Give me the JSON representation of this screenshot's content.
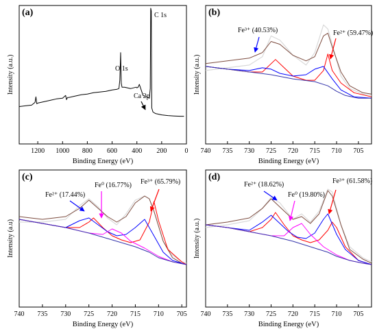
{
  "chart_data": [
    {
      "panel_label": "(a)",
      "type": "line",
      "xlabel": "Binding Energy (eV)",
      "ylabel": "Intensity (a.u.)",
      "xlim": [
        1350,
        0
      ],
      "ylim": [
        0,
        100
      ],
      "x_ticks": [
        1200,
        1000,
        800,
        600,
        400,
        200,
        0
      ],
      "grid": false,
      "series": [
        {
          "x": [
            1350,
            1300,
            1250,
            1222,
            1215,
            1208,
            1200,
            1150,
            1100,
            1050,
            1000,
            975,
            968,
            960,
            950,
            900,
            850,
            800,
            750,
            700,
            650,
            600,
            560,
            545,
            538,
            531,
            526,
            520,
            500,
            450,
            405,
            400,
            390,
            380,
            350,
            320,
            300,
            292,
            288,
            284,
            280,
            270,
            250,
            200,
            150,
            100,
            50,
            20
          ],
          "values": [
            27,
            27.5,
            28,
            30,
            34,
            29,
            29.5,
            30.5,
            31.5,
            32.5,
            33,
            35,
            32,
            33.5,
            33.5,
            34.5,
            35.5,
            36,
            37,
            37.5,
            38,
            39,
            39.5,
            40,
            46,
            66,
            44,
            41,
            41,
            40,
            41,
            40.5,
            41,
            43,
            35,
            34,
            33,
            40,
            98,
            96,
            26,
            23,
            22,
            21,
            20.5,
            20.2,
            20,
            20
          ],
          "color": "#000000"
        }
      ],
      "annotations": [
        "O 1s",
        "C 1s",
        "Ca 2p"
      ]
    },
    {
      "panel_label": "(b)",
      "type": "line",
      "xlabel": "Binding Energy (eV)",
      "ylabel": "Intensity (a.u.)",
      "xlim": [
        740,
        702
      ],
      "ylim": [
        0,
        100
      ],
      "x_ticks": [
        740,
        735,
        730,
        725,
        720,
        715,
        710,
        705
      ],
      "grid": false,
      "series": [
        {
          "x": [
            740,
            735,
            730,
            727,
            725,
            723,
            720,
            717,
            715,
            713,
            712,
            711,
            709,
            707,
            704,
            702
          ],
          "values": [
            53,
            55,
            57,
            63,
            78,
            75,
            64,
            57,
            66,
            86,
            83,
            72,
            49,
            40,
            36,
            35
          ],
          "color": "#d9d9d9"
        },
        {
          "x": [
            740,
            735,
            730,
            727,
            725,
            723,
            720,
            717,
            715,
            713,
            712,
            711,
            709,
            707,
            704,
            702
          ],
          "values": [
            58,
            60,
            62,
            66,
            74,
            72,
            64,
            60,
            63,
            78,
            80,
            70,
            52,
            42,
            37,
            36
          ],
          "color": "#7b4a3d"
        },
        {
          "x": [
            740,
            735,
            730,
            727,
            724,
            722,
            720,
            717,
            715,
            713,
            712,
            711,
            709,
            706,
            702
          ],
          "values": [
            56,
            54,
            52,
            52,
            61,
            55,
            49,
            46,
            46,
            53,
            65,
            53,
            44,
            37,
            34
          ],
          "color": "#ff0000"
        },
        {
          "x": [
            740,
            735,
            730,
            727,
            725,
            723,
            720,
            717,
            715,
            713,
            711,
            709,
            706,
            702
          ],
          "values": [
            56,
            54,
            53,
            55,
            54,
            51,
            49,
            50,
            54,
            56,
            47,
            39,
            34,
            33
          ],
          "color": "#0000ff"
        },
        {
          "x": [
            740,
            735,
            730,
            725,
            720,
            715,
            712,
            710,
            708,
            705,
            702
          ],
          "values": [
            56,
            54,
            52,
            50,
            47,
            45,
            42,
            38,
            35,
            33,
            33
          ],
          "color": "#3333aa"
        }
      ],
      "annotations": [
        {
          "text": "Fe³⁺ (40.53%)",
          "arrow_color": "#0000ff"
        },
        {
          "text": "Fe²⁺ (59.47%)",
          "arrow_color": "#ff0000"
        }
      ]
    },
    {
      "panel_label": "(c)",
      "type": "line",
      "xlabel": "Binding Energy (eV)",
      "ylabel": "Intensity (a.u)",
      "xlim": [
        740,
        704
      ],
      "ylim": [
        0,
        100
      ],
      "x_ticks": [
        740,
        735,
        730,
        725,
        720,
        715,
        710,
        705
      ],
      "grid": false,
      "series": [
        {
          "x": [
            740,
            735,
            730,
            727,
            725,
            723,
            721,
            719,
            717,
            715,
            713,
            712,
            711,
            709,
            707,
            705,
            704
          ],
          "values": [
            62,
            62,
            64,
            74,
            79,
            73,
            65,
            60,
            68,
            78,
            81,
            79,
            70,
            48,
            38,
            33,
            32
          ],
          "color": "#d9d9d9"
        },
        {
          "x": [
            740,
            735,
            730,
            727,
            725,
            723,
            721,
            719,
            717,
            715,
            713,
            712,
            711,
            709,
            707,
            705,
            704
          ],
          "values": [
            66,
            64,
            66,
            72,
            78,
            72,
            66,
            62,
            66,
            76,
            81,
            79,
            70,
            48,
            36,
            32,
            31
          ],
          "color": "#7b4a3d"
        },
        {
          "x": [
            740,
            735,
            730,
            727,
            725,
            724,
            722,
            720,
            718,
            716,
            714,
            712,
            711,
            710,
            708,
            705,
            704
          ],
          "values": [
            64,
            61,
            58,
            58,
            62,
            65,
            58,
            52,
            49,
            47,
            49,
            62,
            77,
            63,
            42,
            33,
            31
          ],
          "color": "#ff0000"
        },
        {
          "x": [
            740,
            735,
            730,
            727,
            725,
            723,
            721,
            719,
            717,
            715,
            713,
            711,
            709,
            707,
            704
          ],
          "values": [
            64,
            61,
            58,
            63,
            65,
            60,
            55,
            52,
            53,
            58,
            64,
            52,
            40,
            34,
            31
          ],
          "color": "#0000ff"
        },
        {
          "x": [
            740,
            735,
            730,
            725,
            722,
            720,
            718,
            716,
            713,
            710,
            707,
            704
          ],
          "values": [
            64,
            61,
            58,
            54,
            53,
            57,
            54,
            48,
            43,
            37,
            33,
            31
          ],
          "color": "#ff00ff"
        },
        {
          "x": [
            740,
            735,
            730,
            725,
            720,
            715,
            712,
            710,
            707,
            704
          ],
          "values": [
            64,
            61,
            58,
            54,
            49,
            44,
            40,
            36,
            33,
            31
          ],
          "color": "#3333aa"
        }
      ],
      "annotations": [
        {
          "text": "Fe²⁺ (17.44%)",
          "arrow_color": "#0000ff"
        },
        {
          "text": "Fe⁰ (16.77%)",
          "arrow_color": "#ff00ff"
        },
        {
          "text": "Fe³⁺ (65.79%)",
          "arrow_color": "#ff0000"
        }
      ]
    },
    {
      "panel_label": "(d)",
      "type": "line",
      "xlabel": "Binding Energy (eV)",
      "ylabel": "Intensity (a.u.)",
      "xlim": [
        740,
        702
      ],
      "ylim": [
        0,
        100
      ],
      "x_ticks": [
        740,
        735,
        730,
        725,
        720,
        715,
        710,
        705
      ],
      "grid": false,
      "series": [
        {
          "x": [
            740,
            735,
            730,
            727,
            725,
            723,
            720,
            718,
            716,
            714,
            712,
            711,
            709,
            707,
            704,
            702
          ],
          "values": [
            58,
            60,
            63,
            72,
            80,
            76,
            64,
            68,
            62,
            70,
            86,
            84,
            60,
            44,
            36,
            33
          ],
          "color": "#d9d9d9"
        },
        {
          "x": [
            740,
            735,
            730,
            727,
            725,
            723,
            720,
            718,
            716,
            714,
            712,
            711,
            709,
            707,
            704,
            702
          ],
          "values": [
            60,
            62,
            65,
            72,
            79,
            73,
            64,
            66,
            61,
            68,
            85,
            81,
            60,
            42,
            35,
            32
          ],
          "color": "#7b4a3d"
        },
        {
          "x": [
            740,
            735,
            730,
            727,
            725,
            724,
            722,
            720,
            718,
            716,
            714,
            712,
            711,
            710,
            708,
            705,
            702
          ],
          "values": [
            60,
            58,
            55,
            58,
            64,
            69,
            60,
            52,
            49,
            47,
            49,
            56,
            62,
            58,
            44,
            34,
            31
          ],
          "color": "#ff0000"
        },
        {
          "x": [
            740,
            735,
            730,
            727,
            725,
            723,
            721,
            719,
            717,
            715,
            713,
            712,
            710,
            708,
            705,
            702
          ],
          "values": [
            60,
            58,
            56,
            62,
            67,
            61,
            55,
            51,
            50,
            54,
            64,
            68,
            53,
            42,
            34,
            31
          ],
          "color": "#0000ff"
        },
        {
          "x": [
            740,
            735,
            730,
            725,
            722,
            720,
            718,
            716,
            713,
            710,
            707,
            704,
            702
          ],
          "values": [
            60,
            58,
            55,
            52,
            52,
            58,
            61,
            53,
            44,
            38,
            34,
            32,
            31
          ],
          "color": "#ff00ff"
        },
        {
          "x": [
            740,
            735,
            730,
            725,
            720,
            715,
            712,
            710,
            707,
            704,
            702
          ],
          "values": [
            60,
            58,
            55,
            52,
            48,
            43,
            40,
            37,
            34,
            32,
            31
          ],
          "color": "#3333aa"
        }
      ],
      "annotations": [
        {
          "text": "Fe²⁺ (18.62%)",
          "arrow_color": "#0000ff"
        },
        {
          "text": "Fe⁰ (19.80%)",
          "arrow_color": "#ff00ff"
        },
        {
          "text": "Fe³⁺ (61.58%)",
          "arrow_color": "#ff0000"
        }
      ]
    }
  ]
}
